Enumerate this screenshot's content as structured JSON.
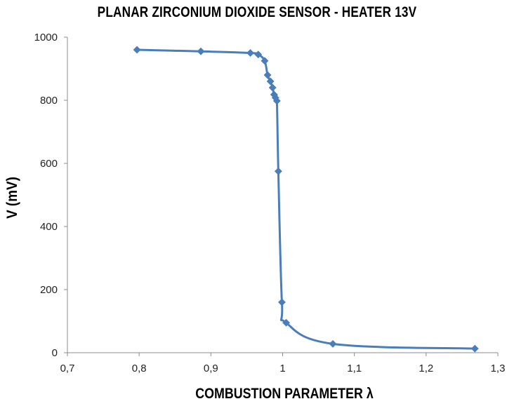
{
  "chart_data": {
    "type": "scatter",
    "title": "PLANAR ZIRCONIUM DIOXIDE SENSOR - HEATER 13V",
    "xlabel": "COMBUSTION PARAMETER λ",
    "ylabel": "V (mV)",
    "xlim": [
      0.7,
      1.3
    ],
    "ylim": [
      0,
      1000
    ],
    "x_ticks": [
      "0,7",
      "0,8",
      "0,9",
      "1",
      "1,1",
      "1,2",
      "1,3"
    ],
    "y_ticks": [
      "0",
      "200",
      "400",
      "600",
      "800",
      "1000"
    ],
    "grid": false,
    "legend": "none",
    "lines": "smooth",
    "series": [
      {
        "color": "#4a7ebb",
        "x": [
          0.797,
          0.886,
          0.955,
          0.966,
          0.975,
          0.979,
          0.983,
          0.986,
          0.988,
          0.99,
          0.992,
          0.994,
          0.999,
          1.005,
          1.07,
          1.268
        ],
        "y": [
          960,
          955,
          950,
          945,
          925,
          880,
          860,
          840,
          818,
          808,
          798,
          575,
          160,
          95,
          28,
          13
        ]
      }
    ]
  }
}
